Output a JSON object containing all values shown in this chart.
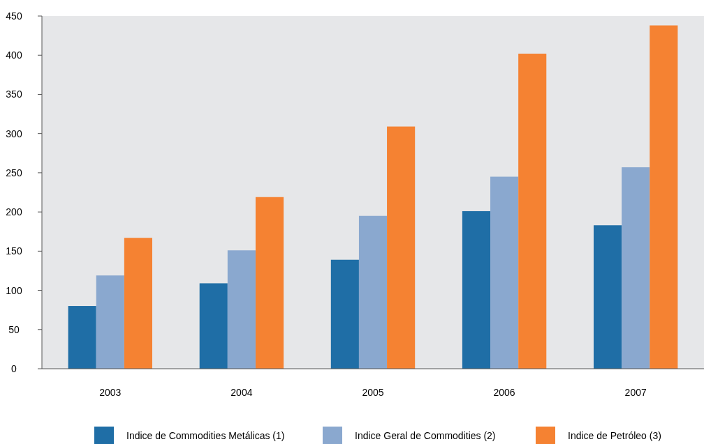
{
  "chart_data": {
    "type": "bar",
    "categories": [
      "2003",
      "2004",
      "2005",
      "2006",
      "2007"
    ],
    "series": [
      {
        "name": "Indice de Commodities Metálicas (1)",
        "color": "#1f6ea6",
        "values": [
          80,
          109,
          139,
          201,
          183
        ]
      },
      {
        "name": "Indice Geral de Commodities (2)",
        "color": "#8aa8cf",
        "values": [
          119,
          151,
          195,
          245,
          257
        ]
      },
      {
        "name": "Indice de Petróleo (3)",
        "color": "#f58232",
        "values": [
          167,
          219,
          309,
          402,
          438
        ]
      }
    ],
    "ylim": [
      0,
      450
    ],
    "yticks": [
      0,
      50,
      100,
      150,
      200,
      250,
      300,
      350,
      400,
      450
    ],
    "grid": false,
    "legend": "bottom"
  }
}
